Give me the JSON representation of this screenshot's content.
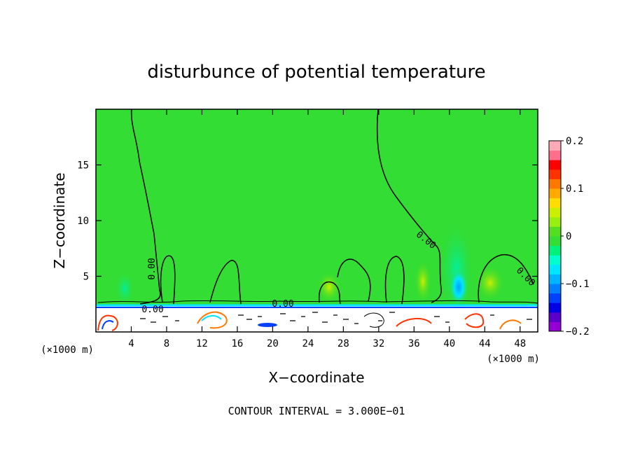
{
  "chart_data": {
    "type": "heatmap",
    "title": "disturbunce of potential temperature",
    "xlabel": "X−coordinate",
    "ylabel": "Z−coordinate",
    "x_unit": "(×1000 m)",
    "z_unit": "(×1000 m)",
    "xlim": [
      0,
      50
    ],
    "ylim": [
      0,
      20
    ],
    "x_ticks": [
      4,
      8,
      12,
      16,
      20,
      24,
      28,
      32,
      36,
      40,
      44,
      48
    ],
    "y_ticks": [
      5,
      10,
      15
    ],
    "colorbar": {
      "min": -0.2,
      "max": 0.2,
      "tick_values": [
        0.2,
        0.1,
        0,
        -0.1,
        -0.2
      ],
      "tick_labels": [
        "0.2",
        "0.1",
        "0",
        "−0.1",
        "−0.2"
      ],
      "colors": [
        "#9400d3",
        "#5a00c8",
        "#0000e6",
        "#0040ff",
        "#0080ff",
        "#00b4ff",
        "#00e6ff",
        "#00ffcc",
        "#00f07a",
        "#33dd33",
        "#55dd22",
        "#99ee11",
        "#ccee00",
        "#ffdd00",
        "#ffaa00",
        "#ff7700",
        "#ff3300",
        "#ff0000",
        "#ff6e8c",
        "#ffaab4"
      ]
    },
    "contour_labels": [
      "0.00",
      "0.00",
      "0.00",
      "0.00",
      "0.00",
      "0.00"
    ],
    "footer": "CONTOUR INTERVAL = 3.000E−01"
  }
}
